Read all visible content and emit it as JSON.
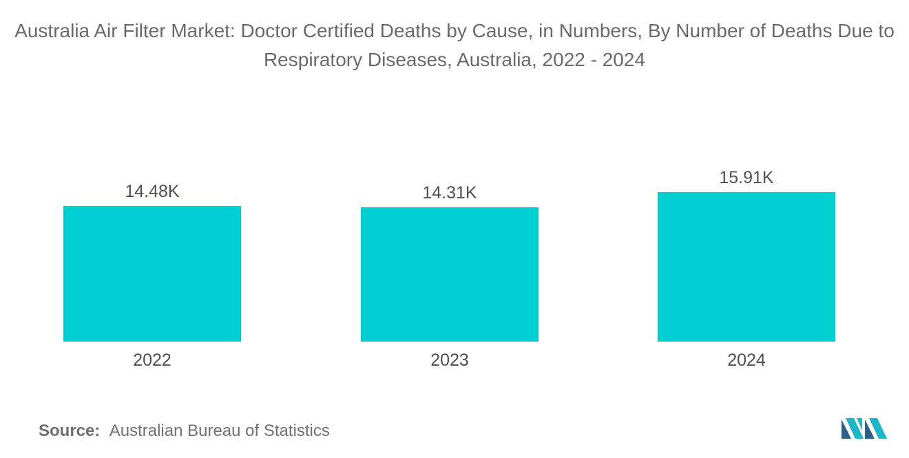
{
  "title": "Australia Air Filter Market: Doctor Certified Deaths by Cause, in Numbers, By Number of Deaths Due to Respiratory Diseases, Australia, 2022 - 2024",
  "source": {
    "label": "Source:",
    "text": "Australian Bureau of Statistics"
  },
  "logo": {
    "icon": "mordor-intelligence-logo",
    "colors": [
      "#1fb6c9",
      "#2d5f8a"
    ]
  },
  "chart_data": {
    "type": "bar",
    "categories": [
      "2022",
      "2023",
      "2024"
    ],
    "values": [
      14480,
      14310,
      15910
    ],
    "data_labels": [
      "14.48K",
      "14.31K",
      "15.91K"
    ],
    "ylim": [
      0,
      16800
    ],
    "bar_color": "#00cfd1",
    "grid": false,
    "legend": "none",
    "title": "",
    "xlabel": "",
    "ylabel": ""
  }
}
